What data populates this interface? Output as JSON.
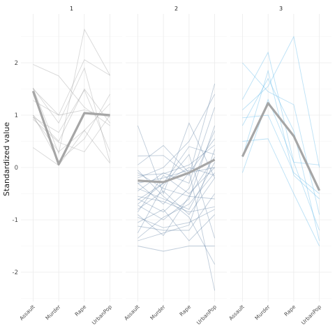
{
  "chart_data": {
    "type": "line",
    "ylabel": "Standardized value",
    "variables": [
      "Assault",
      "Murder",
      "Rape",
      "UrbanPop"
    ],
    "ylim": [
      -2.55,
      2.9
    ],
    "yticks": [
      -2,
      -1,
      0,
      1,
      2
    ],
    "ytick_labels": [
      "-2",
      "-1",
      "0",
      "1",
      "2"
    ],
    "grid": true,
    "legend": "none",
    "panels": [
      {
        "label": "1",
        "line_color": "#9e9e9e",
        "centroid_color": "#a6a6a6",
        "centroid": [
          1.46,
          0.06,
          1.04,
          1.0
        ],
        "profiles": [
          [
            1.97,
            1.75,
            1.15,
            0.8
          ],
          [
            1.52,
            0.85,
            1.9,
            0.1
          ],
          [
            1.52,
            0.27,
            2.64,
            1.76
          ],
          [
            1.28,
            1.0,
            2.06,
            1.76
          ],
          [
            1.0,
            0.5,
            1.5,
            0.85
          ],
          [
            0.96,
            0.67,
            1.48,
            0.3
          ],
          [
            0.96,
            0.3,
            0.71,
            1.22
          ],
          [
            1.0,
            0.12,
            0.55,
            1.4
          ],
          [
            0.92,
            0.48,
            0.3,
            1.0
          ],
          [
            0.38,
            0.04,
            0.71,
            0.08
          ],
          [
            1.5,
            1.0,
            1.1,
            0.96
          ]
        ]
      },
      {
        "label": "2",
        "line_color": "#5f7fa3",
        "centroid_color": "#a6a6a6",
        "centroid": [
          -0.25,
          -0.28,
          -0.1,
          0.15
        ],
        "profiles": [
          [
            0.8,
            -0.5,
            0.85,
            -0.2
          ],
          [
            0.22,
            0.23,
            -0.15,
            1.6
          ],
          [
            0.05,
            0.42,
            -0.1,
            0.55
          ],
          [
            -0.1,
            -0.4,
            -0.55,
            -0.6
          ],
          [
            -0.15,
            -0.12,
            0.05,
            0.43
          ],
          [
            -0.2,
            0.0,
            0.5,
            1.4
          ],
          [
            -0.3,
            -0.7,
            -0.1,
            0.0
          ],
          [
            -0.4,
            -0.6,
            -0.8,
            0.1
          ],
          [
            -0.6,
            -0.85,
            -0.4,
            0.7
          ],
          [
            -0.62,
            -0.3,
            0.4,
            0.25
          ],
          [
            -0.7,
            -0.3,
            0.0,
            -0.15
          ],
          [
            -0.72,
            -1.0,
            -0.6,
            0.8
          ],
          [
            -0.8,
            -0.45,
            -0.9,
            -0.2
          ],
          [
            -0.85,
            -0.15,
            -0.5,
            0.0
          ],
          [
            -0.95,
            -1.15,
            -1.05,
            -0.8
          ],
          [
            -1.05,
            -0.8,
            -1.4,
            -0.9
          ],
          [
            -1.12,
            -1.2,
            -1.2,
            -0.5
          ],
          [
            -1.25,
            -0.35,
            0.25,
            -1.35
          ],
          [
            -1.35,
            -0.95,
            -0.7,
            -0.1
          ],
          [
            -1.4,
            -1.25,
            -1.1,
            0.35
          ],
          [
            -1.5,
            -1.6,
            -1.5,
            -1.5
          ],
          [
            -0.05,
            -0.55,
            -0.95,
            -1.85
          ],
          [
            -0.3,
            -0.2,
            -0.05,
            -2.35
          ],
          [
            -0.55,
            -0.65,
            -0.85,
            -0.75
          ],
          [
            -0.9,
            -1.3,
            -0.55,
            0.2
          ],
          [
            -0.45,
            -0.1,
            -0.3,
            1.15
          ]
        ]
      },
      {
        "label": "3",
        "line_color": "#56b4e9",
        "centroid_color": "#a6a6a6",
        "centroid": [
          0.21,
          1.23,
          0.6,
          -0.44
        ],
        "profiles": [
          [
            2.0,
            1.45,
            1.2,
            -0.9
          ],
          [
            1.3,
            2.2,
            0.1,
            -1.2
          ],
          [
            1.1,
            1.55,
            2.5,
            0.0
          ],
          [
            0.95,
            1.0,
            -0.1,
            -0.5
          ],
          [
            0.8,
            1.7,
            0.7,
            -1.4
          ],
          [
            0.5,
            0.55,
            -0.5,
            -1.5
          ],
          [
            0.2,
            1.85,
            -0.15,
            -0.6
          ],
          [
            -0.1,
            1.3,
            0.1,
            0.05
          ]
        ]
      }
    ]
  }
}
